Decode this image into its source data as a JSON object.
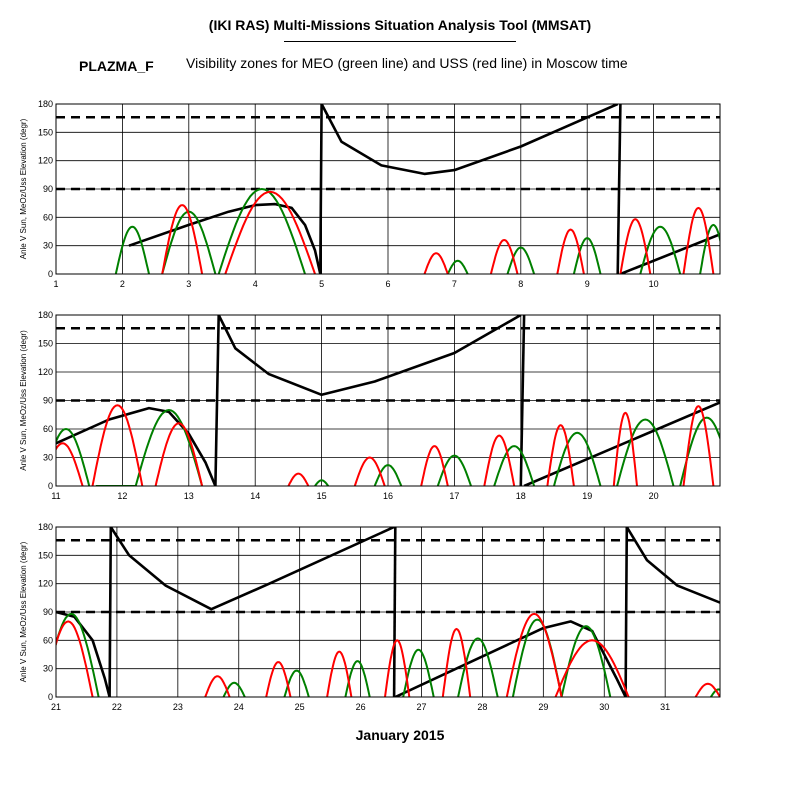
{
  "header": {
    "title": "(IKI RAS) Multi-Missions Situation Analysis Tool (MMSAT)",
    "program": "PLAZMA_F",
    "subtitle": "Visibility zones for MEO (green line) and USS (red line) in Moscow time",
    "xlabel": "January 2015"
  },
  "colors": {
    "black": "#000000",
    "green": "#008000",
    "red": "#ff0000"
  },
  "chart_data": [
    {
      "type": "line",
      "ylabel": "Anle V Sun, MeOz/Uss Elevation (degr)",
      "xlim": [
        1,
        11
      ],
      "ylim": [
        0,
        180
      ],
      "x_ticks": [
        1,
        2,
        3,
        4,
        5,
        6,
        7,
        8,
        9,
        10
      ],
      "y_ticks": [
        0,
        30,
        60,
        90,
        120,
        150,
        180
      ],
      "grid": true,
      "reference_lines": [
        90,
        166
      ],
      "series": [
        {
          "color": "black",
          "kind": "angle",
          "segments": [
            [
              [
                2.1,
                30
              ],
              [
                3.0,
                52
              ],
              [
                3.6,
                66
              ],
              [
                4.0,
                73
              ],
              [
                4.3,
                74
              ],
              [
                4.55,
                70
              ],
              [
                4.75,
                52
              ],
              [
                4.9,
                25
              ],
              [
                4.98,
                0
              ]
            ],
            [
              [
                4.98,
                0
              ],
              [
                5.0,
                180
              ],
              [
                5.3,
                140
              ],
              [
                5.9,
                115
              ],
              [
                6.55,
                106
              ],
              [
                7.0,
                110
              ],
              [
                8.0,
                135
              ],
              [
                9.46,
                180
              ]
            ],
            [
              [
                9.46,
                0
              ],
              [
                9.5,
                180
              ]
            ],
            [
              [
                9.5,
                0
              ],
              [
                11.0,
                42
              ]
            ]
          ]
        },
        {
          "color": "green",
          "kind": "passes",
          "passes": [
            [
              1.9,
              2.4,
              50
            ],
            [
              2.6,
              3.4,
              66
            ],
            [
              3.45,
              4.75,
              90
            ],
            [
              6.9,
              7.2,
              14
            ],
            [
              7.8,
              8.2,
              28
            ],
            [
              8.8,
              9.2,
              38
            ],
            [
              9.8,
              10.4,
              50
            ],
            [
              10.7,
              11.1,
              52
            ]
          ]
        },
        {
          "color": "red",
          "kind": "passes",
          "passes": [
            [
              2.6,
              3.2,
              73
            ],
            [
              3.55,
              4.9,
              87
            ],
            [
              6.55,
              6.9,
              22
            ],
            [
              7.55,
              7.95,
              36
            ],
            [
              8.55,
              8.95,
              47
            ],
            [
              9.5,
              9.95,
              58
            ],
            [
              10.45,
              10.9,
              70
            ]
          ]
        }
      ]
    },
    {
      "type": "line",
      "ylabel": "Anle V Sun, MeOz/Uss Elevation (degr)",
      "xlim": [
        11,
        21
      ],
      "ylim": [
        0,
        180
      ],
      "x_ticks": [
        11,
        12,
        13,
        14,
        15,
        16,
        17,
        18,
        19,
        20
      ],
      "y_ticks": [
        0,
        30,
        60,
        90,
        120,
        150,
        180
      ],
      "grid": true,
      "reference_lines": [
        90,
        166
      ],
      "series": [
        {
          "color": "black",
          "kind": "angle",
          "segments": [
            [
              [
                11.0,
                45
              ],
              [
                11.8,
                70
              ],
              [
                12.4,
                82
              ],
              [
                12.7,
                78
              ],
              [
                13.0,
                55
              ],
              [
                13.25,
                25
              ],
              [
                13.4,
                0
              ]
            ],
            [
              [
                13.4,
                0
              ],
              [
                13.45,
                180
              ],
              [
                13.7,
                145
              ],
              [
                14.2,
                118
              ],
              [
                15.0,
                96
              ],
              [
                15.8,
                110
              ],
              [
                17.0,
                140
              ],
              [
                18.0,
                180
              ]
            ],
            [
              [
                18.0,
                0
              ],
              [
                18.05,
                180
              ]
            ],
            [
              [
                18.05,
                0
              ],
              [
                21.0,
                88
              ]
            ]
          ]
        },
        {
          "color": "green",
          "kind": "passes",
          "passes": [
            [
              10.8,
              11.5,
              60
            ],
            [
              11.6,
              12.2,
              0
            ],
            [
              12.2,
              13.2,
              80
            ],
            [
              14.9,
              15.1,
              6
            ],
            [
              15.8,
              16.2,
              22
            ],
            [
              16.75,
              17.25,
              32
            ],
            [
              17.6,
              18.2,
              42
            ],
            [
              18.5,
              19.2,
              56
            ],
            [
              19.45,
              20.3,
              70
            ],
            [
              20.4,
              21.2,
              72
            ]
          ]
        },
        {
          "color": "red",
          "kind": "passes",
          "passes": [
            [
              10.8,
              11.4,
              45
            ],
            [
              11.55,
              12.3,
              85
            ],
            [
              12.5,
              13.2,
              66
            ],
            [
              14.5,
              14.8,
              13
            ],
            [
              15.5,
              15.95,
              30
            ],
            [
              16.5,
              16.9,
              42
            ],
            [
              17.45,
              17.9,
              53
            ],
            [
              18.4,
              18.8,
              64
            ],
            [
              19.4,
              19.75,
              77
            ],
            [
              20.45,
              20.9,
              84
            ]
          ]
        }
      ]
    },
    {
      "type": "line",
      "ylabel": "Anle V Sun, MeOz/Uss Elevation (degr)",
      "xlim": [
        21,
        31.9
      ],
      "ylim": [
        0,
        180
      ],
      "x_ticks": [
        21,
        22,
        23,
        24,
        25,
        26,
        27,
        28,
        29,
        30,
        31
      ],
      "y_ticks": [
        0,
        30,
        60,
        90,
        120,
        150,
        180
      ],
      "grid": true,
      "reference_lines": [
        90,
        166
      ],
      "series": [
        {
          "color": "black",
          "kind": "angle",
          "segments": [
            [
              [
                21.0,
                90
              ],
              [
                21.3,
                85
              ],
              [
                21.6,
                60
              ],
              [
                21.8,
                20
              ],
              [
                21.88,
                0
              ]
            ],
            [
              [
                21.88,
                0
              ],
              [
                21.9,
                180
              ],
              [
                22.2,
                150
              ],
              [
                22.8,
                118
              ],
              [
                23.55,
                93
              ],
              [
                24.5,
                120
              ],
              [
                26.55,
                180
              ]
            ],
            [
              [
                26.55,
                0
              ],
              [
                26.57,
                180
              ]
            ],
            [
              [
                26.57,
                0
              ],
              [
                28.0,
                43
              ],
              [
                29.0,
                73
              ],
              [
                29.45,
                80
              ],
              [
                29.8,
                70
              ],
              [
                30.2,
                20
              ],
              [
                30.35,
                0
              ]
            ],
            [
              [
                30.35,
                0
              ],
              [
                30.37,
                180
              ],
              [
                30.7,
                145
              ],
              [
                31.2,
                118
              ],
              [
                31.9,
                100
              ]
            ]
          ]
        },
        {
          "color": "green",
          "kind": "passes",
          "passes": [
            [
              20.8,
              21.7,
              88
            ],
            [
              23.75,
              24.1,
              15
            ],
            [
              24.75,
              25.15,
              28
            ],
            [
              25.75,
              26.15,
              38
            ],
            [
              26.7,
              27.2,
              50
            ],
            [
              27.6,
              28.25,
              62
            ],
            [
              28.5,
              29.3,
              82
            ],
            [
              29.3,
              30.1,
              75
            ],
            [
              31.75,
              32.0,
              8
            ]
          ]
        },
        {
          "color": "red",
          "kind": "passes",
          "passes": [
            [
              20.8,
              21.6,
              80
            ],
            [
              23.45,
              23.85,
              22
            ],
            [
              24.45,
              24.85,
              37
            ],
            [
              25.45,
              25.85,
              48
            ],
            [
              26.4,
              26.8,
              60
            ],
            [
              27.35,
              27.8,
              72
            ],
            [
              28.4,
              29.3,
              88
            ],
            [
              29.2,
              30.4,
              60
            ],
            [
              31.5,
              31.9,
              14
            ]
          ]
        }
      ]
    }
  ]
}
